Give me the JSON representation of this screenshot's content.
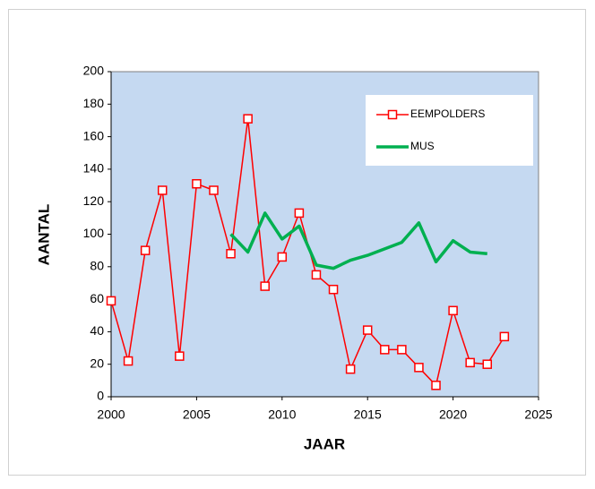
{
  "chart_data": {
    "type": "line",
    "x": [
      2000,
      2001,
      2002,
      2003,
      2004,
      2005,
      2006,
      2007,
      2008,
      2009,
      2010,
      2011,
      2012,
      2013,
      2014,
      2015,
      2016,
      2017,
      2018,
      2019,
      2020,
      2021,
      2022,
      2023
    ],
    "series": [
      {
        "name": "EEMPOLDERS",
        "color": "#ff0000",
        "marker": "square",
        "values": [
          59,
          22,
          90,
          127,
          25,
          131,
          127,
          88,
          171,
          68,
          86,
          113,
          75,
          66,
          17,
          41,
          29,
          29,
          18,
          7,
          53,
          21,
          20,
          37
        ]
      },
      {
        "name": "MUS",
        "color": "#00b050",
        "marker": "none",
        "values": [
          null,
          null,
          null,
          null,
          null,
          null,
          null,
          100,
          89,
          113,
          97,
          105,
          81,
          79,
          84,
          87,
          91,
          95,
          107,
          83,
          96,
          89,
          88,
          null
        ]
      }
    ],
    "xlabel": "JAAR",
    "ylabel": "AANTAL",
    "xlim": [
      2000,
      2025
    ],
    "xticks": [
      2000,
      2005,
      2010,
      2015,
      2020,
      2025
    ],
    "ylim": [
      0,
      200
    ],
    "yticks": [
      0,
      20,
      40,
      60,
      80,
      100,
      120,
      140,
      160,
      180,
      200
    ],
    "grid": false,
    "legend": "upper right",
    "plot_background": "#c5d9f1"
  }
}
